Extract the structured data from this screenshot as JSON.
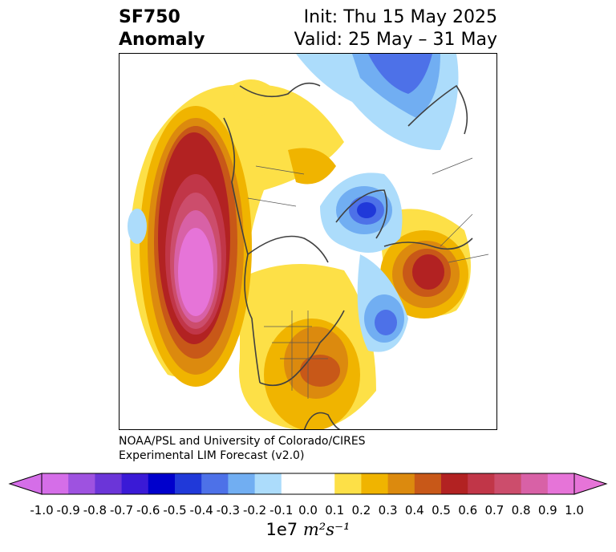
{
  "title": {
    "variable": "SF750",
    "kind": "Anomaly",
    "init": "Init: Thu 15 May 2025",
    "valid": "Valid: 25 May – 31 May"
  },
  "credit": {
    "line1": "NOAA/PSL and University of Colorado/CIRES",
    "line2": "Experimental LIM Forecast (v2.0)"
  },
  "colorbar": {
    "ticks": [
      "-1.0",
      "-0.9",
      "-0.8",
      "-0.7",
      "-0.6",
      "-0.5",
      "-0.4",
      "-0.3",
      "-0.2",
      "-0.1",
      "0.0",
      "0.1",
      "0.2",
      "0.3",
      "0.4",
      "0.5",
      "0.6",
      "0.7",
      "0.8",
      "0.9",
      "1.0"
    ],
    "colors": [
      "#d56ee8",
      "#9e52e0",
      "#6b35d8",
      "#3a1ad6",
      "#0000cc",
      "#2039d9",
      "#4d71e8",
      "#71aef2",
      "#acdcfb",
      "#ffffff",
      "#ffffff",
      "#fde047",
      "#f0b400",
      "#dc8a0e",
      "#c85818",
      "#b22222",
      "#c13648",
      "#cc4d6c",
      "#d861a6",
      "#e674d8"
    ],
    "units_prefix": "1e7",
    "units": "m²s⁻¹"
  }
}
